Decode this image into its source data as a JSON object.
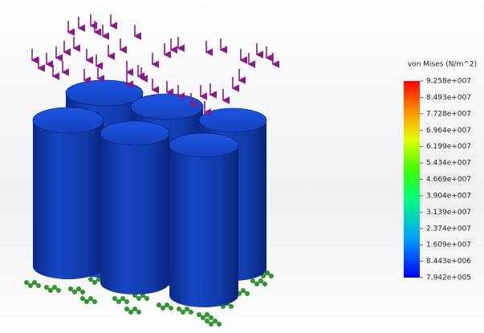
{
  "legend": {
    "title": "von Mises (N/m^2)",
    "labels": [
      "9.258e+007",
      "8.493e+007",
      "7.728e+007",
      "6.964e+007",
      "6.199e+007",
      "5.434e+007",
      "4.669e+007",
      "3.904e+007",
      "3.139e+007",
      "2.374e+007",
      "1.609e+007",
      "8.443e+006",
      "7.942e+005"
    ]
  }
}
